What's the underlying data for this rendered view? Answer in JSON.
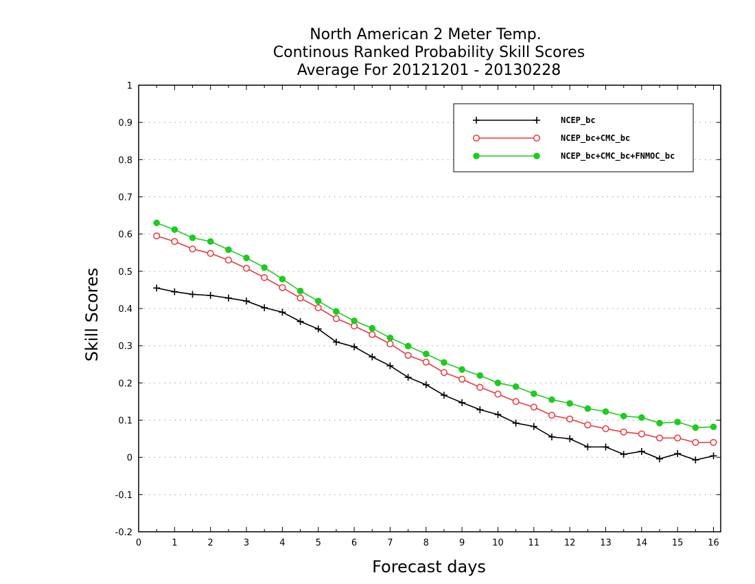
{
  "chart_data": {
    "type": "line",
    "title": [
      "North American 2 Meter Temp.",
      "Continous Ranked Probability Skill Scores",
      "Average For 20121201 - 20130228"
    ],
    "xlabel": "Forecast days",
    "ylabel": "Skill Scores",
    "xlim": [
      0,
      16.2
    ],
    "ylim": [
      -0.2,
      1.0
    ],
    "xticks": [
      "0",
      "1",
      "2",
      "3",
      "4",
      "5",
      "6",
      "7",
      "8",
      "9",
      "10",
      "11",
      "12",
      "13",
      "14",
      "15",
      "16"
    ],
    "yticks": [
      "-0.2",
      "-0.1",
      "0",
      "0.1",
      "0.2",
      "0.3",
      "0.4",
      "0.5",
      "0.6",
      "0.7",
      "0.8",
      "0.9",
      "1"
    ],
    "grid": "horizontal dotted",
    "legend_position": "top-right",
    "x": [
      0.5,
      1,
      1.5,
      2,
      2.5,
      3,
      3.5,
      4,
      4.5,
      5,
      5.5,
      6,
      6.5,
      7,
      7.5,
      8,
      8.5,
      9,
      9.5,
      10,
      10.5,
      11,
      11.5,
      12,
      12.5,
      13,
      13.5,
      14,
      14.5,
      15,
      15.5,
      16
    ],
    "series": [
      {
        "name": "NCEP_bc",
        "color": "#000000",
        "marker": "plus",
        "values": [
          0.455,
          0.445,
          0.438,
          0.435,
          0.428,
          0.42,
          0.402,
          0.39,
          0.365,
          0.345,
          0.31,
          0.297,
          0.27,
          0.246,
          0.215,
          0.195,
          0.167,
          0.147,
          0.128,
          0.115,
          0.092,
          0.083,
          0.055,
          0.05,
          0.028,
          0.028,
          0.008,
          0.016,
          -0.004,
          0.01,
          -0.007,
          0.004
        ]
      },
      {
        "name": "NCEP_bc+CMC_bc",
        "color": "#e8383d",
        "marker": "open-circle",
        "values": [
          0.595,
          0.58,
          0.56,
          0.548,
          0.53,
          0.508,
          0.483,
          0.456,
          0.428,
          0.402,
          0.373,
          0.353,
          0.33,
          0.305,
          0.274,
          0.256,
          0.228,
          0.21,
          0.188,
          0.17,
          0.15,
          0.135,
          0.113,
          0.103,
          0.087,
          0.077,
          0.068,
          0.063,
          0.052,
          0.052,
          0.04,
          0.04
        ]
      },
      {
        "name": "NCEP_bc+CMC_bc+FNMOC_bc",
        "color": "#1ecb1e",
        "marker": "filled-circle",
        "values": [
          0.63,
          0.612,
          0.59,
          0.58,
          0.558,
          0.536,
          0.51,
          0.479,
          0.447,
          0.42,
          0.392,
          0.367,
          0.347,
          0.321,
          0.299,
          0.278,
          0.255,
          0.236,
          0.22,
          0.2,
          0.19,
          0.171,
          0.155,
          0.145,
          0.131,
          0.123,
          0.111,
          0.107,
          0.092,
          0.095,
          0.08,
          0.082
        ]
      }
    ]
  }
}
